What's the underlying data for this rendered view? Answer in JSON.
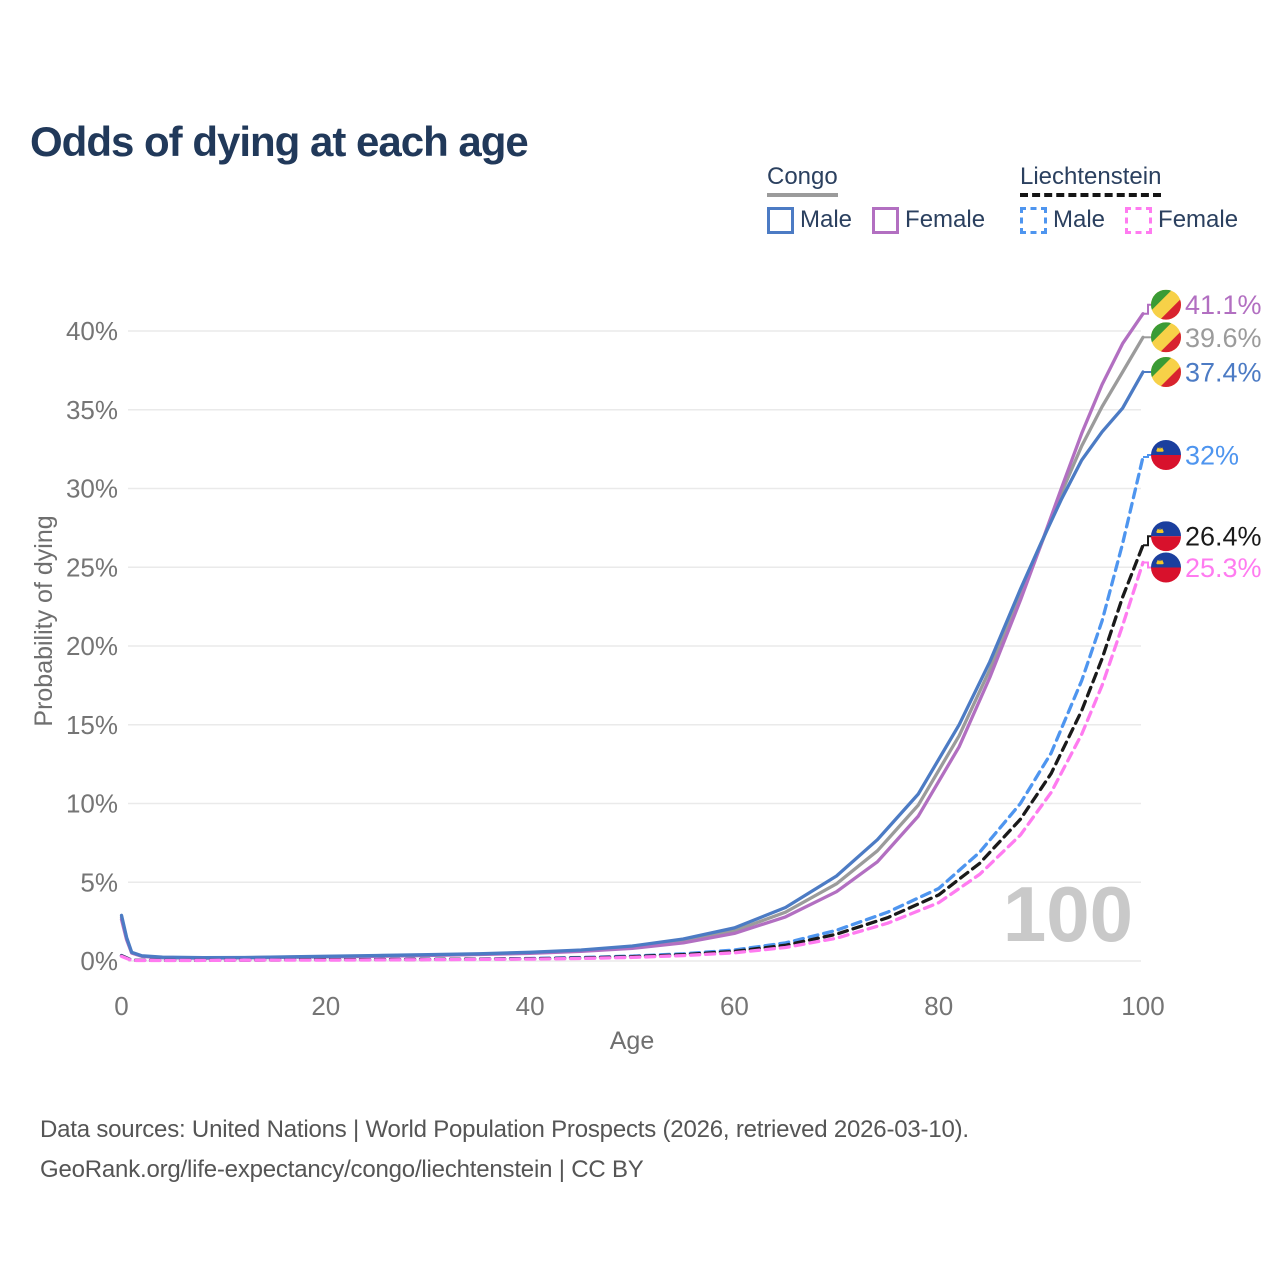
{
  "title": "Odds of dying at each age",
  "legend": {
    "groups": [
      {
        "name": "Congo",
        "line_style": "solid",
        "underline_color": "#9b9b9b",
        "items": [
          {
            "label": "Male",
            "color": "#4c7bc4"
          },
          {
            "label": "Female",
            "color": "#b26fc1"
          }
        ]
      },
      {
        "name": "Liechtenstein",
        "line_style": "dashed",
        "underline_color": "#151515",
        "items": [
          {
            "label": "Male",
            "color": "#4e95ef"
          },
          {
            "label": "Female",
            "color": "#ff7bf0"
          }
        ]
      }
    ]
  },
  "chart_data": {
    "type": "line",
    "title": "Odds of dying at each age",
    "xlabel": "Age",
    "ylabel": "Probability of dying",
    "xlim": [
      0,
      100
    ],
    "ylim": [
      0,
      42
    ],
    "grid": "horizontal-only",
    "watermark": "100",
    "x_ticks": [
      {
        "value": 0,
        "label": "0"
      },
      {
        "value": 20,
        "label": "20"
      },
      {
        "value": 40,
        "label": "40"
      },
      {
        "value": 60,
        "label": "60"
      },
      {
        "value": 80,
        "label": "80"
      },
      {
        "value": 100,
        "label": "100"
      }
    ],
    "y_ticks": [
      {
        "value": 0,
        "label": "0%"
      },
      {
        "value": 5,
        "label": "5%"
      },
      {
        "value": 10,
        "label": "10%"
      },
      {
        "value": 15,
        "label": "15%"
      },
      {
        "value": 20,
        "label": "20%"
      },
      {
        "value": 25,
        "label": "25%"
      },
      {
        "value": 30,
        "label": "30%"
      },
      {
        "value": 35,
        "label": "35%"
      },
      {
        "value": 40,
        "label": "40%"
      }
    ],
    "series": [
      {
        "name": "Congo Male",
        "color": "#4c7bc4",
        "dash": false,
        "flag": "congo",
        "end_label": "37.4%",
        "end_value": 37.4,
        "points": [
          [
            0,
            2.9
          ],
          [
            0.5,
            1.5
          ],
          [
            1,
            0.55
          ],
          [
            2,
            0.33
          ],
          [
            4,
            0.24
          ],
          [
            8,
            0.21
          ],
          [
            12,
            0.22
          ],
          [
            16,
            0.26
          ],
          [
            20,
            0.3
          ],
          [
            25,
            0.35
          ],
          [
            30,
            0.4
          ],
          [
            35,
            0.46
          ],
          [
            40,
            0.55
          ],
          [
            45,
            0.7
          ],
          [
            50,
            0.95
          ],
          [
            55,
            1.4
          ],
          [
            60,
            2.1
          ],
          [
            65,
            3.4
          ],
          [
            70,
            5.4
          ],
          [
            74,
            7.7
          ],
          [
            78,
            10.6
          ],
          [
            82,
            15.0
          ],
          [
            85,
            19.0
          ],
          [
            88,
            23.6
          ],
          [
            90,
            26.5
          ],
          [
            92,
            29.3
          ],
          [
            94,
            31.8
          ],
          [
            96,
            33.6
          ],
          [
            98,
            35.1
          ],
          [
            100,
            37.4
          ]
        ]
      },
      {
        "name": "Congo Female",
        "color": "#b26fc1",
        "dash": false,
        "flag": "congo",
        "end_label": "41.1%",
        "end_value": 41.1,
        "points": [
          [
            0,
            2.65
          ],
          [
            0.5,
            1.35
          ],
          [
            1,
            0.5
          ],
          [
            2,
            0.3
          ],
          [
            4,
            0.21
          ],
          [
            8,
            0.18
          ],
          [
            12,
            0.2
          ],
          [
            16,
            0.23
          ],
          [
            20,
            0.26
          ],
          [
            25,
            0.3
          ],
          [
            30,
            0.35
          ],
          [
            35,
            0.41
          ],
          [
            40,
            0.48
          ],
          [
            45,
            0.61
          ],
          [
            50,
            0.8
          ],
          [
            55,
            1.15
          ],
          [
            60,
            1.75
          ],
          [
            65,
            2.8
          ],
          [
            70,
            4.4
          ],
          [
            74,
            6.3
          ],
          [
            78,
            9.2
          ],
          [
            82,
            13.6
          ],
          [
            85,
            18.0
          ],
          [
            88,
            22.9
          ],
          [
            90,
            26.4
          ],
          [
            92,
            30.0
          ],
          [
            94,
            33.5
          ],
          [
            96,
            36.6
          ],
          [
            98,
            39.2
          ],
          [
            100,
            41.1
          ]
        ]
      },
      {
        "name": "Congo Combined",
        "color": "#9b9b9b",
        "dash": false,
        "flag": "congo",
        "end_label": "39.6%",
        "end_value": 39.6,
        "points": [
          [
            0,
            2.78
          ],
          [
            0.5,
            1.42
          ],
          [
            1,
            0.52
          ],
          [
            2,
            0.31
          ],
          [
            4,
            0.22
          ],
          [
            8,
            0.19
          ],
          [
            12,
            0.21
          ],
          [
            16,
            0.24
          ],
          [
            20,
            0.28
          ],
          [
            25,
            0.32
          ],
          [
            30,
            0.37
          ],
          [
            35,
            0.43
          ],
          [
            40,
            0.51
          ],
          [
            45,
            0.65
          ],
          [
            50,
            0.87
          ],
          [
            55,
            1.27
          ],
          [
            60,
            1.92
          ],
          [
            65,
            3.1
          ],
          [
            70,
            4.9
          ],
          [
            74,
            7.0
          ],
          [
            78,
            9.9
          ],
          [
            82,
            14.3
          ],
          [
            85,
            18.5
          ],
          [
            88,
            23.2
          ],
          [
            90,
            26.4
          ],
          [
            92,
            29.7
          ],
          [
            94,
            32.7
          ],
          [
            96,
            35.2
          ],
          [
            98,
            37.4
          ],
          [
            100,
            39.6
          ]
        ]
      },
      {
        "name": "Liechtenstein Male",
        "color": "#4e95ef",
        "dash": true,
        "flag": "liechtenstein",
        "end_label": "32%",
        "end_value": 32,
        "points": [
          [
            0,
            0.35
          ],
          [
            1,
            0.06
          ],
          [
            4,
            0.04
          ],
          [
            8,
            0.05
          ],
          [
            12,
            0.06
          ],
          [
            16,
            0.08
          ],
          [
            20,
            0.09
          ],
          [
            25,
            0.1
          ],
          [
            30,
            0.11
          ],
          [
            35,
            0.13
          ],
          [
            40,
            0.16
          ],
          [
            45,
            0.22
          ],
          [
            50,
            0.31
          ],
          [
            55,
            0.46
          ],
          [
            60,
            0.7
          ],
          [
            65,
            1.15
          ],
          [
            70,
            1.95
          ],
          [
            75,
            3.1
          ],
          [
            80,
            4.6
          ],
          [
            84,
            6.9
          ],
          [
            88,
            10.0
          ],
          [
            91,
            13.2
          ],
          [
            94,
            17.8
          ],
          [
            96,
            21.6
          ],
          [
            98,
            26.5
          ],
          [
            100,
            32.0
          ]
        ]
      },
      {
        "name": "Liechtenstein Female",
        "color": "#ff7bf0",
        "dash": true,
        "flag": "liechtenstein",
        "end_label": "25.3%",
        "end_value": 25.3,
        "points": [
          [
            0,
            0.3
          ],
          [
            1,
            0.04
          ],
          [
            4,
            0.03
          ],
          [
            8,
            0.04
          ],
          [
            12,
            0.05
          ],
          [
            16,
            0.055
          ],
          [
            20,
            0.06
          ],
          [
            25,
            0.07
          ],
          [
            30,
            0.08
          ],
          [
            35,
            0.1
          ],
          [
            40,
            0.12
          ],
          [
            45,
            0.16
          ],
          [
            50,
            0.23
          ],
          [
            55,
            0.34
          ],
          [
            60,
            0.52
          ],
          [
            65,
            0.86
          ],
          [
            70,
            1.45
          ],
          [
            75,
            2.4
          ],
          [
            80,
            3.7
          ],
          [
            84,
            5.5
          ],
          [
            88,
            8.0
          ],
          [
            91,
            10.7
          ],
          [
            94,
            14.4
          ],
          [
            96,
            17.5
          ],
          [
            98,
            21.3
          ],
          [
            100,
            25.3
          ]
        ]
      },
      {
        "name": "Liechtenstein Combined",
        "color": "#1a1a1a",
        "dash": true,
        "flag": "liechtenstein",
        "end_label": "26.4%",
        "end_value": 26.4,
        "points": [
          [
            0,
            0.33
          ],
          [
            1,
            0.05
          ],
          [
            4,
            0.035
          ],
          [
            8,
            0.045
          ],
          [
            12,
            0.055
          ],
          [
            16,
            0.07
          ],
          [
            20,
            0.08
          ],
          [
            25,
            0.09
          ],
          [
            30,
            0.1
          ],
          [
            35,
            0.12
          ],
          [
            40,
            0.14
          ],
          [
            45,
            0.19
          ],
          [
            50,
            0.27
          ],
          [
            55,
            0.4
          ],
          [
            60,
            0.61
          ],
          [
            65,
            1.0
          ],
          [
            70,
            1.7
          ],
          [
            75,
            2.75
          ],
          [
            80,
            4.2
          ],
          [
            84,
            6.2
          ],
          [
            88,
            9.0
          ],
          [
            91,
            11.9
          ],
          [
            94,
            15.9
          ],
          [
            96,
            19.2
          ],
          [
            98,
            23.1
          ],
          [
            100,
            26.4
          ]
        ]
      }
    ]
  },
  "footer": {
    "line1": "Data sources: United Nations | World Population Prospects (2026, retrieved 2026-03-10).",
    "line2": "GeoRank.org/life-expectancy/congo/liechtenstein | CC BY"
  }
}
